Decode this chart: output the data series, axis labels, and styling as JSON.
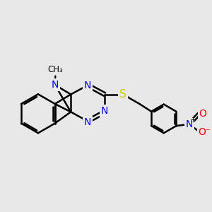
{
  "bg_color": "#e8e8e8",
  "bond_color": "#000000",
  "bond_width": 1.8,
  "N_color": "#0000ee",
  "S_color": "#cccc00",
  "O_color": "#ff0000",
  "font_size": 10,
  "fig_bg": "#e8e8e8",
  "methyl_label": "CH₃",
  "N_label": "N",
  "S_label": "S",
  "O_label": "O",
  "Ominus_label": "O⁻"
}
